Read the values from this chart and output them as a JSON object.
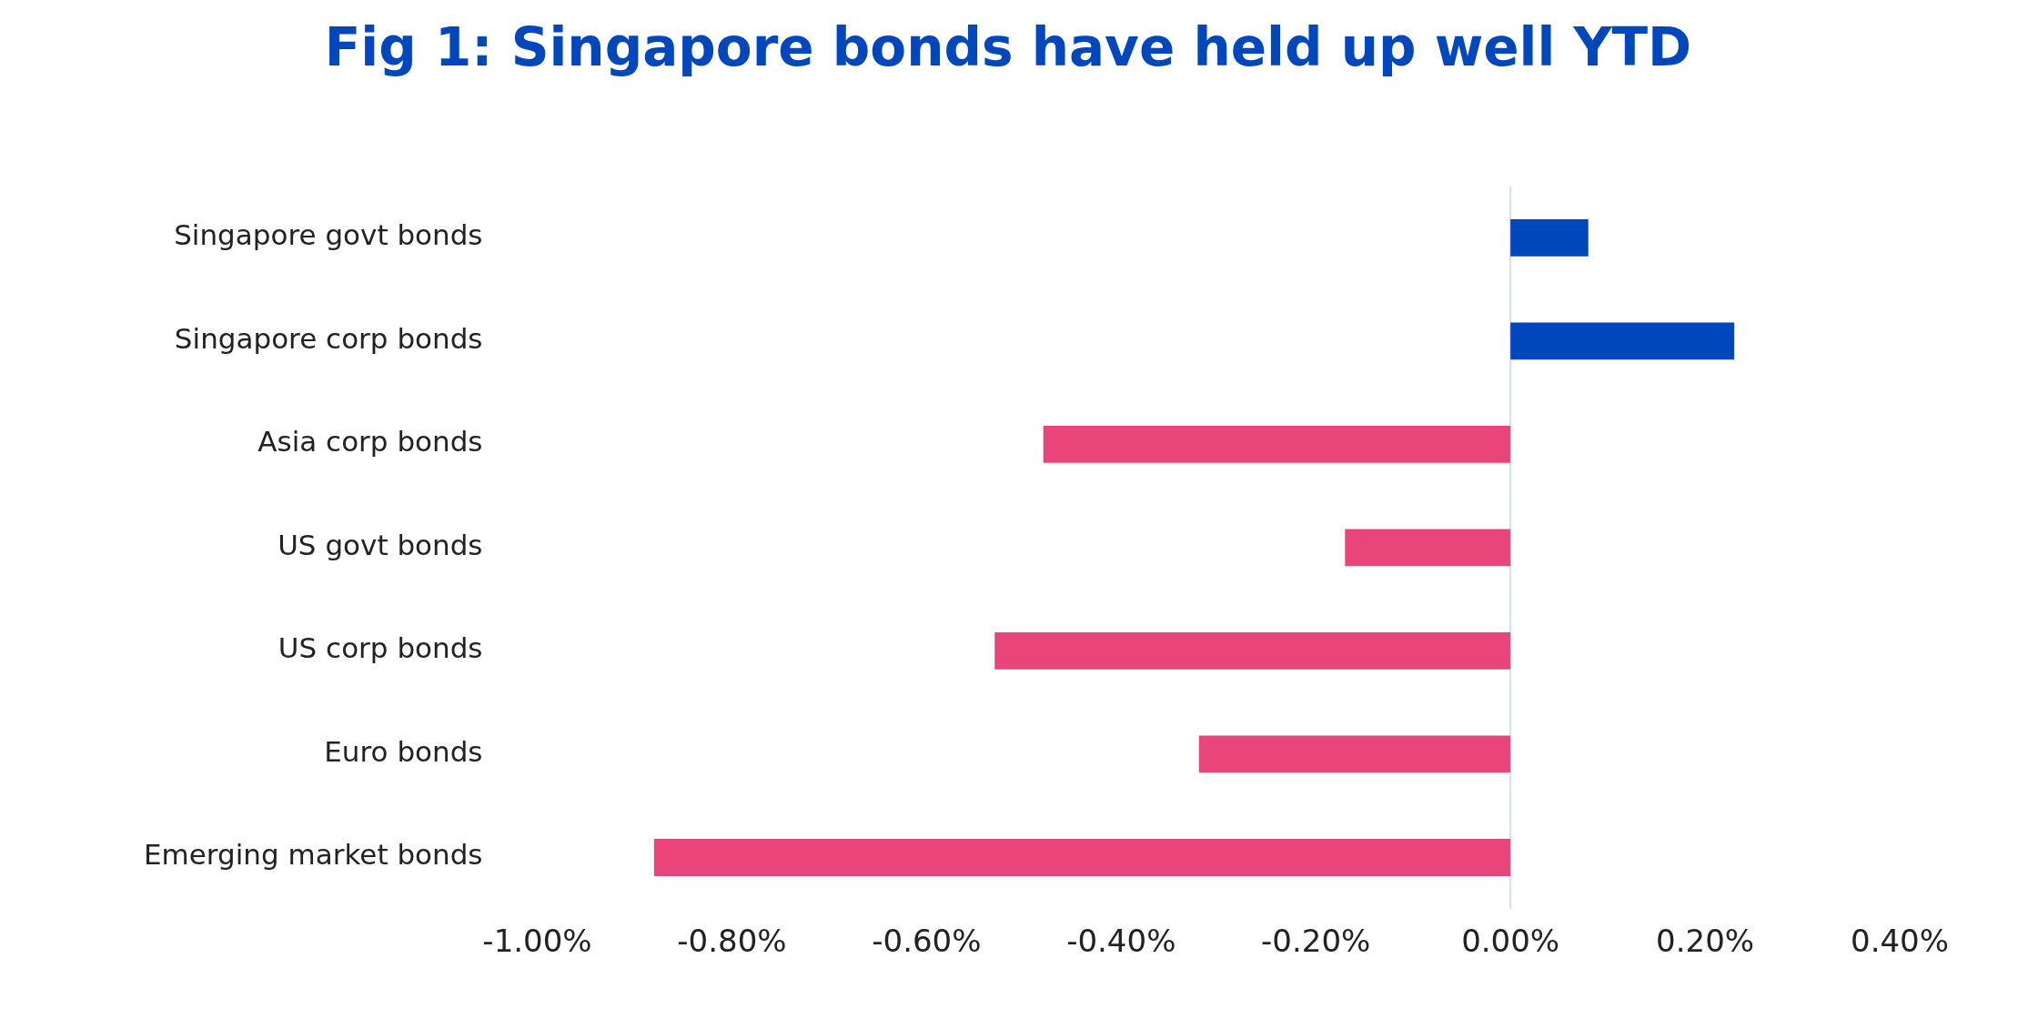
{
  "chart_data": {
    "type": "bar",
    "orientation": "horizontal",
    "title": "Fig 1: Singapore bonds have held up well YTD",
    "categories": [
      "Singapore govt bonds",
      "Singapore corp bonds",
      "Asia corp bonds",
      "US govt bonds",
      "US corp bonds",
      "Euro bonds",
      "Emerging market bonds"
    ],
    "values": [
      0.08,
      0.23,
      -0.48,
      -0.17,
      -0.53,
      -0.32,
      -0.88
    ],
    "colors": [
      "#0047bb",
      "#0047bb",
      "#e8457a",
      "#e8457a",
      "#e8457a",
      "#e8457a",
      "#e8457a"
    ],
    "xlim": [
      -1.0,
      0.4
    ],
    "xticks": [
      {
        "value": -1.0,
        "label": "-1.00%"
      },
      {
        "value": -0.8,
        "label": "-0.80%"
      },
      {
        "value": -0.6,
        "label": "-0.60%"
      },
      {
        "value": -0.4,
        "label": "-0.40%"
      },
      {
        "value": -0.2,
        "label": "-0.20%"
      },
      {
        "value": 0,
        "label": "0.00%"
      },
      {
        "value": 0.2,
        "label": "0.20%"
      },
      {
        "value": 0.4,
        "label": "0.40%"
      }
    ],
    "ref_lines": [
      {
        "axis": "x",
        "value": 0,
        "color": "#d8dcef"
      }
    ],
    "legend": false
  }
}
